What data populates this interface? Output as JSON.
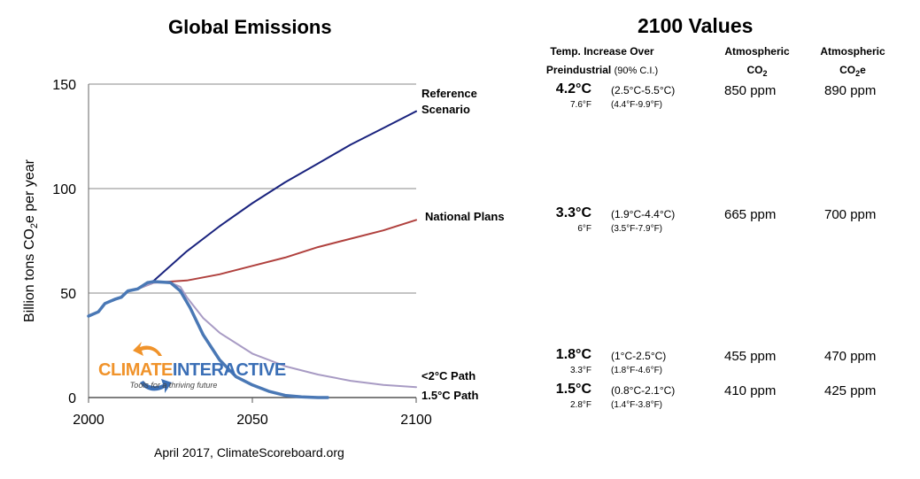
{
  "chart_data": {
    "type": "line",
    "title": "Global Emissions",
    "ylabel": "Billion tons CO₂e per year",
    "xlabel": "",
    "xlim": [
      2000,
      2100
    ],
    "ylim": [
      0,
      150
    ],
    "xticks": [
      "2000",
      "2050",
      "2100"
    ],
    "yticks": [
      "0",
      "50",
      "100",
      "150"
    ],
    "grid": "horizontal",
    "series": [
      {
        "name": "Reference Scenario",
        "color": "#1a237e",
        "x": [
          2000,
          2003,
          2005,
          2008,
          2010,
          2012,
          2015,
          2020,
          2030,
          2040,
          2050,
          2060,
          2070,
          2080,
          2090,
          2100
        ],
        "values": [
          39,
          41,
          45,
          47,
          48,
          51,
          52,
          56,
          70,
          82,
          93,
          103,
          112,
          121,
          129,
          137
        ]
      },
      {
        "name": "National Plans",
        "color": "#b0413e",
        "x": [
          2000,
          2003,
          2005,
          2008,
          2010,
          2012,
          2015,
          2020,
          2025,
          2030,
          2040,
          2050,
          2060,
          2070,
          2080,
          2090,
          2100
        ],
        "values": [
          39,
          41,
          45,
          47,
          48,
          51,
          52,
          55,
          55.5,
          56,
          59,
          63,
          67,
          72,
          76,
          80,
          85
        ]
      },
      {
        "name": "<2°C Path",
        "color": "#a89bc4",
        "x": [
          2000,
          2003,
          2005,
          2008,
          2010,
          2012,
          2015,
          2020,
          2025,
          2028,
          2030,
          2035,
          2040,
          2050,
          2060,
          2070,
          2080,
          2090,
          2100
        ],
        "values": [
          39,
          41,
          45,
          47,
          48,
          51,
          52,
          55,
          55,
          53,
          48,
          38,
          31,
          21,
          15,
          11,
          8,
          6,
          5
        ]
      },
      {
        "name": "1.5°C Path",
        "color": "#4a78b5",
        "x": [
          2000,
          2003,
          2005,
          2008,
          2010,
          2012,
          2015,
          2018,
          2020,
          2025,
          2028,
          2031,
          2035,
          2040,
          2045,
          2050,
          2055,
          2060,
          2065,
          2070,
          2073
        ],
        "values": [
          39,
          41,
          45,
          47,
          48,
          51,
          52,
          55,
          55.5,
          55,
          51,
          43,
          30,
          18,
          10,
          6,
          3,
          1,
          0.3,
          0,
          0
        ]
      }
    ]
  },
  "logo": {
    "text_a": "CLIMATE",
    "text_b": "INTERACTIVE",
    "tagline": "Tools for a thriving future"
  },
  "footer": "April 2017,  ClimateScoreboard.org",
  "table": {
    "title": "2100 Values",
    "headers": {
      "temp_line1": "Temp. Increase Over",
      "temp_line2": "Preindustrial",
      "temp_ci": "(90% C.I.)",
      "co2_line1": "Atmospheric",
      "co2_line2": "CO",
      "co2_sub": "2",
      "co2e_line1": "Atmospheric",
      "co2e_line2": "CO",
      "co2e_sub": "2",
      "co2e_suffix": "e"
    },
    "rows": [
      {
        "temp_c": "4.2°C",
        "temp_f": "7.6°F",
        "range_c": "(2.5°C-5.5°C)",
        "range_f": "(4.4°F-9.9°F)",
        "co2": "850  ppm",
        "co2e": "890  ppm"
      },
      {
        "temp_c": "3.3°C",
        "temp_f": "6°F",
        "range_c": "(1.9°C-4.4°C)",
        "range_f": "(3.5°F-7.9°F)",
        "co2": "665  ppm",
        "co2e": "700  ppm"
      },
      {
        "temp_c": "1.8°C",
        "temp_f": "3.3°F",
        "range_c": "(1°C-2.5°C)",
        "range_f": "(1.8°F-4.6°F)",
        "co2": "455  ppm",
        "co2e": "470  ppm"
      },
      {
        "temp_c": "1.5°C",
        "temp_f": "2.8°F",
        "range_c": "(0.8°C-2.1°C)",
        "range_f": "(1.4°F-3.8°F)",
        "co2": "410  ppm",
        "co2e": "425  ppm"
      }
    ]
  }
}
